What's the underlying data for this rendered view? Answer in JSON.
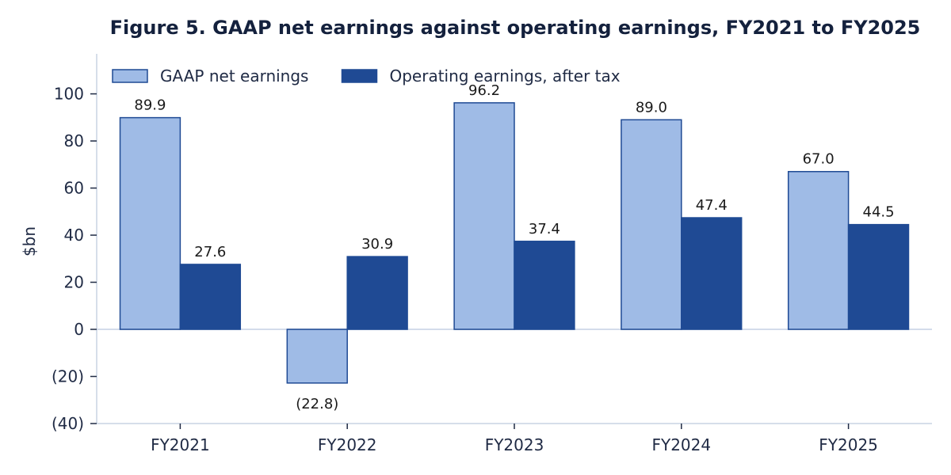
{
  "chart_data": {
    "type": "bar",
    "title": "Figure 5. GAAP net earnings against operating earnings, FY2021 to FY2025",
    "xlabel": "",
    "ylabel": "$bn",
    "categories": [
      "FY2021",
      "FY2022",
      "FY2023",
      "FY2024",
      "FY2025"
    ],
    "series": [
      {
        "name": "GAAP net earnings",
        "values": [
          89.9,
          -22.8,
          96.2,
          89.0,
          67.0
        ],
        "labels": [
          "89.9",
          "(22.8)",
          "96.2",
          "89.0",
          "67.0"
        ],
        "color": "#9fbbe6",
        "edge_color": "#1f4a94"
      },
      {
        "name": "Operating earnings, after tax",
        "values": [
          27.6,
          30.9,
          37.4,
          47.4,
          44.5
        ],
        "labels": [
          "27.6",
          "30.9",
          "37.4",
          "47.4",
          "44.5"
        ],
        "color": "#1f4a94",
        "edge_color": "#1f4a94"
      }
    ],
    "ylim": [
      -40,
      117
    ],
    "yticks": [
      -40,
      -20,
      0,
      20,
      40,
      60,
      80,
      100
    ],
    "ytick_labels": [
      "(40)",
      "(20)",
      "0",
      "20",
      "40",
      "60",
      "80",
      "100"
    ],
    "grid": false,
    "legend": "top-left",
    "zero_line_color": "#d3dceb",
    "axis_color": "#c9d3e3",
    "text_color": "#1f2a44"
  }
}
